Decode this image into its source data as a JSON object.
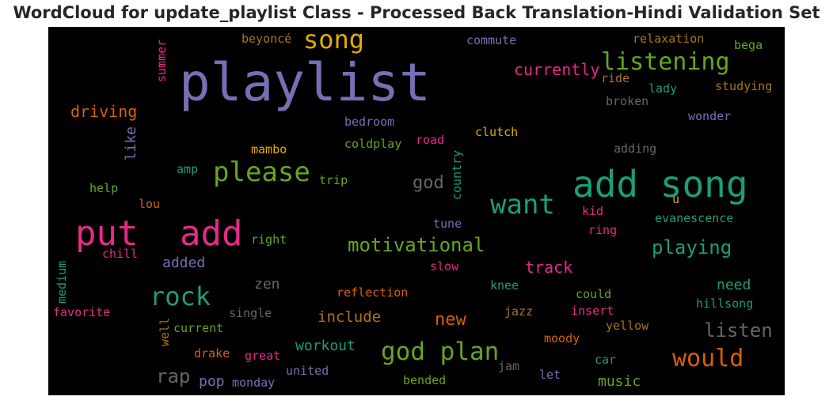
{
  "title": "WordCloud for update_playlist Class - Processed Back Translation-Hindi Validation Set",
  "chart_data": {
    "type": "wordcloud",
    "background": "#000000",
    "words": [
      {
        "text": "playlist",
        "color": "#7570b3"
      },
      {
        "text": "add song",
        "color": "#1b9e77"
      },
      {
        "text": "put",
        "color": "#e7298a"
      },
      {
        "text": "add",
        "color": "#e7298a"
      },
      {
        "text": "song",
        "color": "#e6ab02"
      },
      {
        "text": "listening",
        "color": "#66a61e"
      },
      {
        "text": "please",
        "color": "#66a61e"
      },
      {
        "text": "want",
        "color": "#1b9e77"
      },
      {
        "text": "god plan",
        "color": "#66a61e"
      },
      {
        "text": "rock",
        "color": "#1b9e77"
      },
      {
        "text": "would",
        "color": "#d95f02"
      },
      {
        "text": "motivational",
        "color": "#66a61e"
      },
      {
        "text": "playing",
        "color": "#1b9e77"
      },
      {
        "text": "listen",
        "color": "#666666"
      },
      {
        "text": "currently",
        "color": "#e7298a"
      },
      {
        "text": "driving",
        "color": "#d95f02"
      },
      {
        "text": "god",
        "color": "#666666"
      },
      {
        "text": "rap",
        "color": "#666666"
      },
      {
        "text": "new",
        "color": "#d95f02"
      },
      {
        "text": "track",
        "color": "#e7298a"
      },
      {
        "text": "include",
        "color": "#a6761d"
      },
      {
        "text": "workout",
        "color": "#1b9e77"
      },
      {
        "text": "need",
        "color": "#1b9e77"
      },
      {
        "text": "music",
        "color": "#66a61e"
      },
      {
        "text": "added",
        "color": "#7570b3"
      },
      {
        "text": "like",
        "color": "#7570b3"
      },
      {
        "text": "zen",
        "color": "#666666"
      },
      {
        "text": "pop",
        "color": "#7570b3"
      },
      {
        "text": "beyoncé",
        "color": "#a6761d"
      },
      {
        "text": "commute",
        "color": "#7570b3"
      },
      {
        "text": "relaxation",
        "color": "#a6761d"
      },
      {
        "text": "bega",
        "color": "#66a61e"
      },
      {
        "text": "summer",
        "color": "#e7298a"
      },
      {
        "text": "ride",
        "color": "#a6761d"
      },
      {
        "text": "lady",
        "color": "#1b9e77"
      },
      {
        "text": "studying",
        "color": "#a6761d"
      },
      {
        "text": "broken",
        "color": "#666666"
      },
      {
        "text": "wonder",
        "color": "#7570b3"
      },
      {
        "text": "bedroom",
        "color": "#7570b3"
      },
      {
        "text": "clutch",
        "color": "#e6ab02"
      },
      {
        "text": "coldplay",
        "color": "#66a61e"
      },
      {
        "text": "road",
        "color": "#e7298a"
      },
      {
        "text": "mambo",
        "color": "#e6ab02"
      },
      {
        "text": "adding",
        "color": "#666666"
      },
      {
        "text": "amp",
        "color": "#1b9e77"
      },
      {
        "text": "trip",
        "color": "#66a61e"
      },
      {
        "text": "country",
        "color": "#1b9e77"
      },
      {
        "text": "u",
        "color": "#e6ab02"
      },
      {
        "text": "help",
        "color": "#66a61e"
      },
      {
        "text": "lou",
        "color": "#d95f02"
      },
      {
        "text": "kid",
        "color": "#e7298a"
      },
      {
        "text": "evanescence",
        "color": "#1b9e77"
      },
      {
        "text": "tune",
        "color": "#7570b3"
      },
      {
        "text": "ring",
        "color": "#e7298a"
      },
      {
        "text": "right",
        "color": "#66a61e"
      },
      {
        "text": "chill",
        "color": "#e7298a"
      },
      {
        "text": "slow",
        "color": "#e7298a"
      },
      {
        "text": "medium",
        "color": "#1b9e77"
      },
      {
        "text": "reflection",
        "color": "#d95f02"
      },
      {
        "text": "could",
        "color": "#66a61e"
      },
      {
        "text": "knee",
        "color": "#1b9e77"
      },
      {
        "text": "favorite",
        "color": "#e7298a"
      },
      {
        "text": "single",
        "color": "#666666"
      },
      {
        "text": "hillsong",
        "color": "#1b9e77"
      },
      {
        "text": "jazz",
        "color": "#a6761d"
      },
      {
        "text": "insert",
        "color": "#e7298a"
      },
      {
        "text": "well",
        "color": "#a6761d"
      },
      {
        "text": "current",
        "color": "#66a61e"
      },
      {
        "text": "yellow",
        "color": "#a6761d"
      },
      {
        "text": "moody",
        "color": "#d95f02"
      },
      {
        "text": "drake",
        "color": "#d95f02"
      },
      {
        "text": "great",
        "color": "#e7298a"
      },
      {
        "text": "car",
        "color": "#1b9e77"
      },
      {
        "text": "jam",
        "color": "#666666"
      },
      {
        "text": "united",
        "color": "#7570b3"
      },
      {
        "text": "let",
        "color": "#7570b3"
      },
      {
        "text": "monday",
        "color": "#7570b3"
      },
      {
        "text": "bended",
        "color": "#66a61e"
      }
    ]
  }
}
